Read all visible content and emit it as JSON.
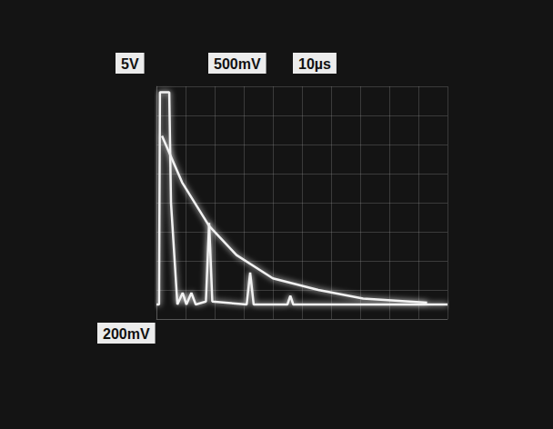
{
  "chart_data": {
    "type": "line",
    "annotations": [
      "5V",
      "500mV",
      "10µs",
      "200mV"
    ],
    "series": [
      {
        "color": "#f2f2f2",
        "x": [
          0,
          0.9,
          1.2,
          4.4,
          5,
          7.2,
          9,
          10.3,
          12,
          13.5,
          17,
          18.1,
          19.2,
          31,
          32.2,
          33.4,
          45,
          46,
          47,
          100
        ],
        "values": [
          0.5,
          0.5,
          7.8,
          7.8,
          4,
          0.5,
          0.9,
          0.5,
          0.9,
          0.5,
          0.6,
          3.3,
          0.6,
          0.5,
          1.6,
          0.5,
          0.5,
          0.8,
          0.5,
          0.5
        ]
      },
      {
        "color": "#f2f2f2",
        "x": [
          1.9,
          8.8,
          18.1,
          27.5,
          40,
          55.6,
          71,
          93
        ],
        "values": [
          6.3,
          4.7,
          3.2,
          2.2,
          1.4,
          1.0,
          0.7,
          0.56
        ]
      }
    ],
    "xlim": [
      0,
      100
    ],
    "xticks": [
      0,
      10,
      20,
      30,
      40,
      50,
      60,
      70,
      80,
      90,
      100
    ],
    "ylim": [
      0,
      8
    ],
    "yticks": [
      0,
      1,
      2,
      3,
      4,
      5,
      6,
      7,
      8
    ],
    "grid": true,
    "tick_labels": false
  }
}
